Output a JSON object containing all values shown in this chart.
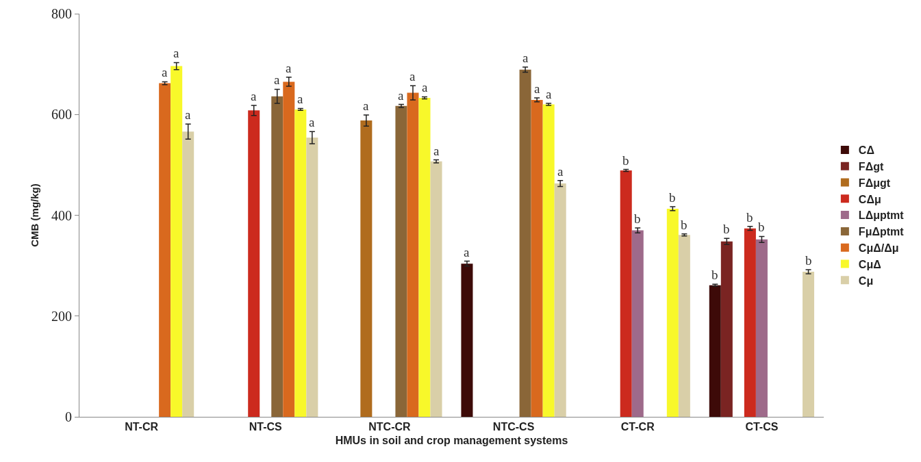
{
  "chart_data": {
    "type": "bar",
    "xlabel": "HMUs in soil and crop management systems",
    "ylabel": "CMB (mg/kg)",
    "categories": [
      "NT-CR",
      "NT-CS",
      "NTC-CR",
      "NTC-CS",
      "CT-CR",
      "CT-CS"
    ],
    "series": [
      {
        "name": "CΔ",
        "color": "#3d0a08",
        "values": [
          null,
          null,
          null,
          304,
          null,
          261
        ],
        "errors": [
          null,
          null,
          null,
          5,
          null,
          2
        ],
        "value_labels": [
          null,
          null,
          null,
          "a",
          null,
          "b"
        ]
      },
      {
        "name": "FΔgt",
        "color": "#7a2422",
        "values": [
          null,
          null,
          null,
          null,
          null,
          348
        ],
        "errors": [
          null,
          null,
          null,
          null,
          null,
          6
        ],
        "value_labels": [
          null,
          null,
          null,
          null,
          null,
          "b"
        ]
      },
      {
        "name": "FΔμgt",
        "color": "#b06c1e",
        "values": [
          null,
          null,
          588,
          null,
          null,
          null
        ],
        "errors": [
          null,
          null,
          11,
          null,
          null,
          null
        ],
        "value_labels": [
          null,
          null,
          "a",
          null,
          null,
          null
        ]
      },
      {
        "name": "CΔμ",
        "color": "#cc2a1e",
        "values": [
          null,
          608,
          null,
          null,
          489,
          374
        ],
        "errors": [
          null,
          10,
          null,
          null,
          2,
          4
        ],
        "value_labels": [
          null,
          "a",
          null,
          null,
          "b",
          "b"
        ]
      },
      {
        "name": "LΔμptmt",
        "color": "#9e6a8a",
        "values": [
          null,
          null,
          null,
          null,
          370,
          352
        ],
        "errors": [
          null,
          null,
          null,
          null,
          5,
          6
        ],
        "value_labels": [
          null,
          null,
          null,
          null,
          "b",
          "b"
        ]
      },
      {
        "name": "FμΔptmt",
        "color": "#8a6638",
        "values": [
          null,
          636,
          617,
          689,
          null,
          null
        ],
        "errors": [
          null,
          14,
          3,
          5,
          null,
          null
        ],
        "value_labels": [
          null,
          "a",
          "a",
          "a",
          null,
          null
        ]
      },
      {
        "name": "CμΔ/Δμ",
        "color": "#d9691e",
        "values": [
          662,
          665,
          643,
          629,
          null,
          null
        ],
        "errors": [
          3,
          9,
          14,
          4,
          null,
          null
        ],
        "value_labels": [
          "a",
          "a",
          "a",
          "a",
          null,
          null
        ]
      },
      {
        "name": "CμΔ",
        "color": "#f8f82a",
        "values": [
          696,
          610,
          633,
          620,
          413,
          null
        ],
        "errors": [
          7,
          2,
          2,
          2,
          4,
          null
        ],
        "value_labels": [
          "a",
          "a",
          "a",
          "a",
          "b",
          null
        ]
      },
      {
        "name": "Cμ",
        "color": "#d9cfa8",
        "values": [
          566,
          554,
          507,
          463,
          361,
          288
        ],
        "errors": [
          15,
          12,
          3,
          6,
          2,
          4
        ],
        "value_labels": [
          "a",
          "a",
          "a",
          "a",
          "b",
          "b"
        ]
      }
    ],
    "ylim": [
      0,
      800
    ],
    "yticks": [
      0,
      200,
      400,
      600,
      800
    ],
    "grid": false,
    "legend": "right"
  }
}
